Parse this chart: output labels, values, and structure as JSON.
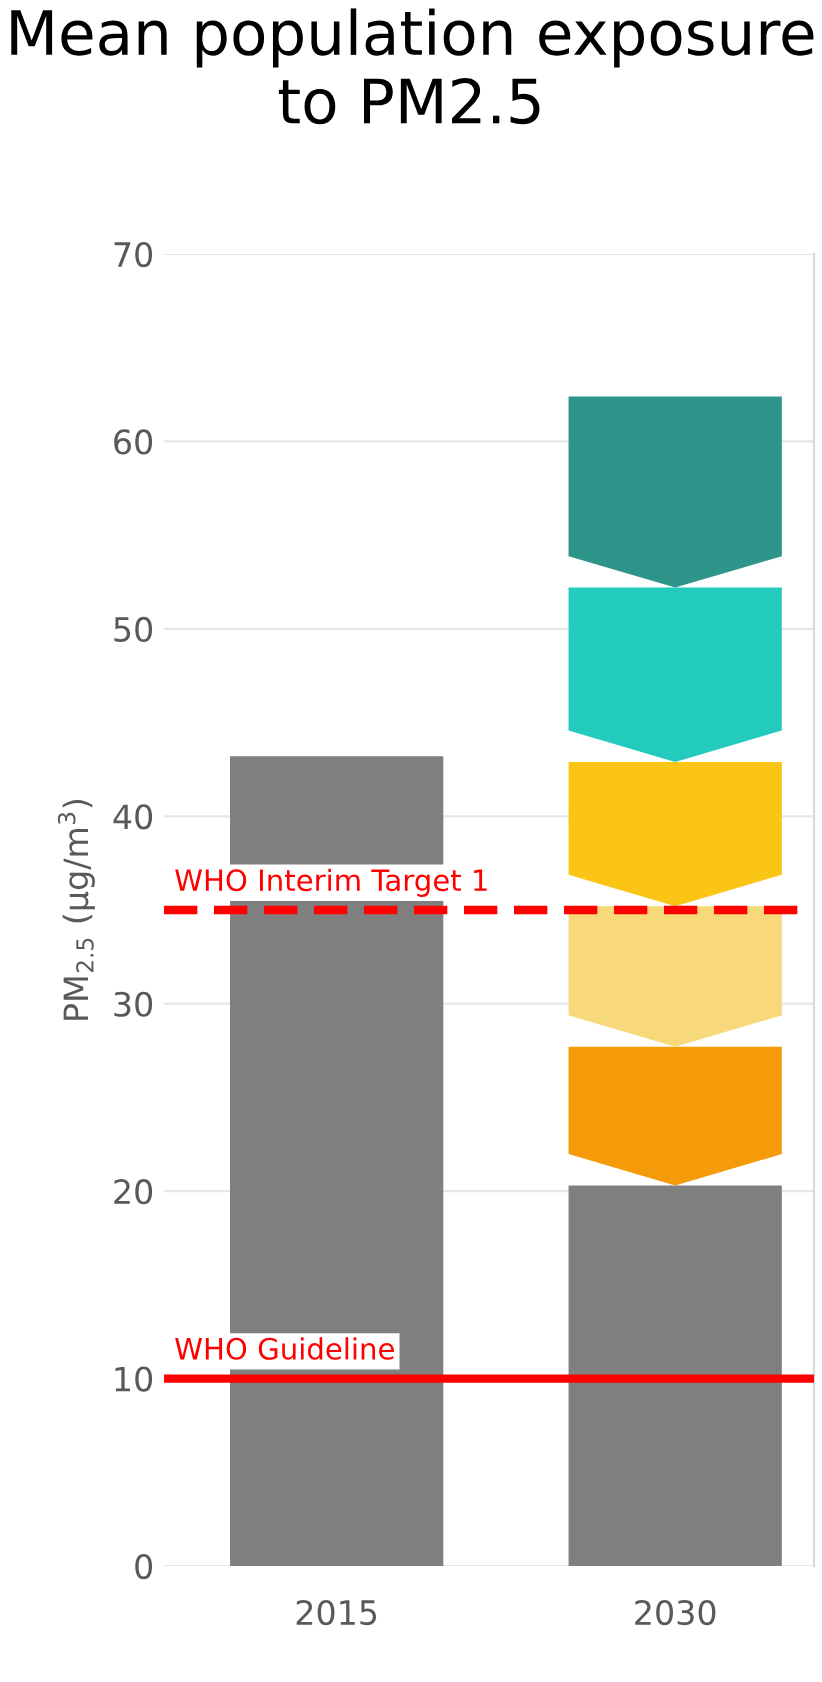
{
  "chart_data": {
    "type": "bar",
    "title": "Mean population exposure to PM2.5",
    "ylabel": "PM$_{2.5}$ (μg/m$^{3}$)",
    "categories": [
      "2015",
      "2030"
    ],
    "stacked": true,
    "series": [
      {
        "color": "#7f7f7f",
        "values": [
          43.2,
          20.3
        ]
      },
      {
        "color": "#f59b0a",
        "values": [
          null,
          7.4
        ]
      },
      {
        "color": "#f7d97a",
        "values": [
          null,
          7.5
        ]
      },
      {
        "color": "#fbc516",
        "values": [
          null,
          7.7
        ]
      },
      {
        "color": "#22cbbe",
        "values": [
          null,
          9.3
        ]
      },
      {
        "color": "#2e958a",
        "values": [
          null,
          10.2
        ]
      }
    ],
    "ylim": [
      0,
      70
    ],
    "yticks": [
      0,
      10,
      20,
      30,
      40,
      50,
      60,
      70
    ],
    "grid": "y",
    "ref_lines": [
      {
        "axis": "y",
        "value": 35,
        "label": "WHO Interim Target 1",
        "color": "#ff0000",
        "line_style": "dashed"
      },
      {
        "axis": "y",
        "value": 10,
        "label": "WHO Guideline",
        "color": "#ff0000",
        "line_style": "solid"
      }
    ]
  }
}
